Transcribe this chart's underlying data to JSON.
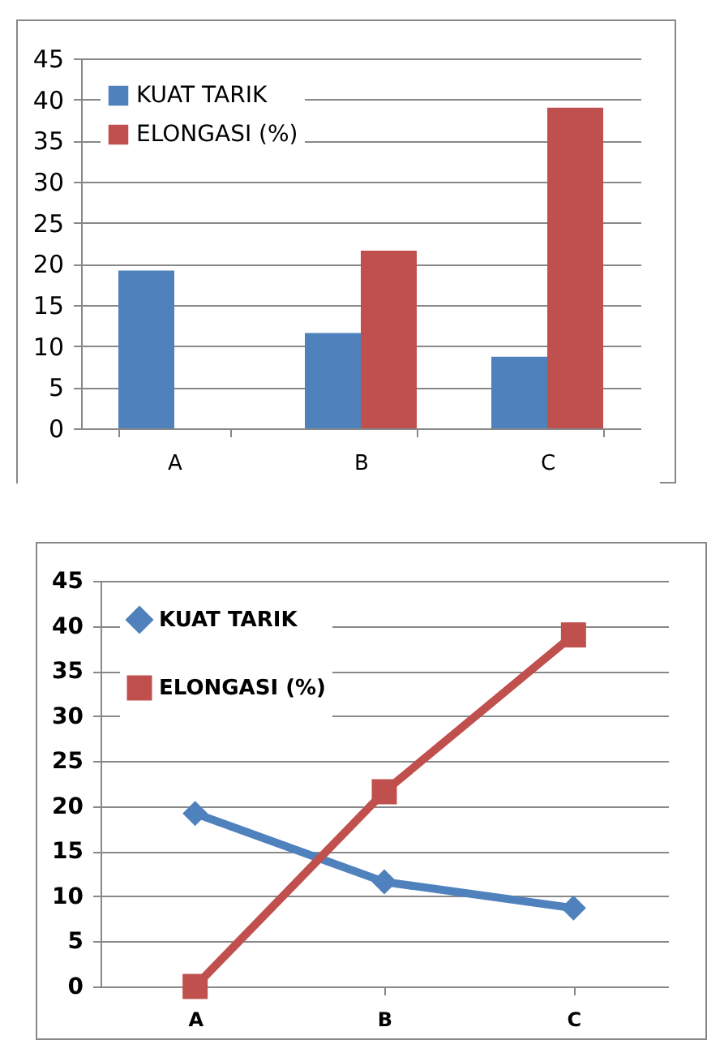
{
  "chart_data": [
    {
      "type": "bar",
      "categories": [
        "A",
        "B",
        "C"
      ],
      "series": [
        {
          "name": "KUAT TARIK",
          "color": "#4f81bd",
          "values": [
            19.2,
            11.6,
            8.7
          ]
        },
        {
          "name": "ELONGASI (%)",
          "color": "#c0504d",
          "values": [
            0,
            21.6,
            39
          ]
        }
      ],
      "ylim": [
        0,
        45
      ],
      "yticks": [
        0,
        5,
        10,
        15,
        20,
        25,
        30,
        35,
        40,
        45
      ],
      "grid": "y",
      "legend": "top left"
    },
    {
      "type": "line",
      "categories": [
        "A",
        "B",
        "C"
      ],
      "series": [
        {
          "name": "KUAT TARIK",
          "color": "#4f81bd",
          "values": [
            19.2,
            11.6,
            8.7
          ],
          "marker": "diamond"
        },
        {
          "name": "ELONGASI (%)",
          "color": "#c0504d",
          "values": [
            0,
            21.6,
            39
          ],
          "marker": "square"
        }
      ],
      "ylim": [
        0,
        45
      ],
      "yticks": [
        0,
        5,
        10,
        15,
        20,
        25,
        30,
        35,
        40,
        45
      ],
      "grid": "y",
      "legend": "top left"
    }
  ]
}
